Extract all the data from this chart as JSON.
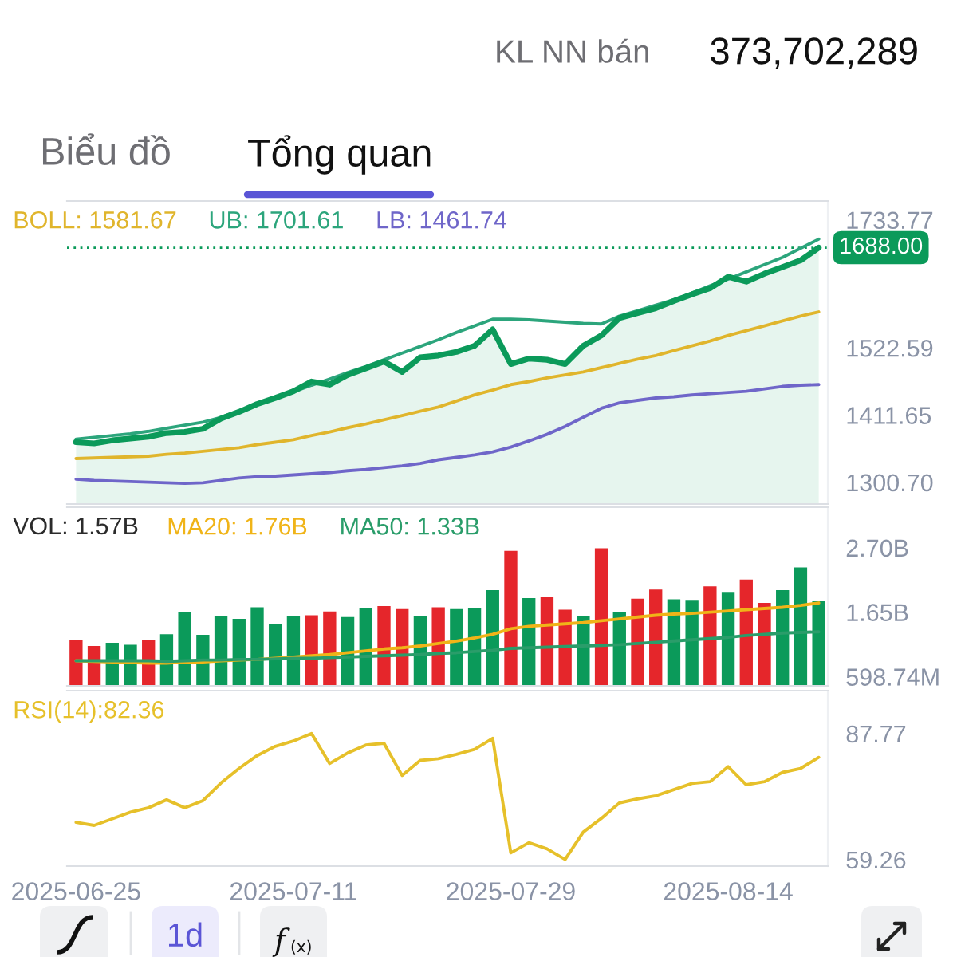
{
  "chart_data": [
    {
      "type": "other",
      "annotations": [
        "KL NN bán",
        "373,702,289",
        "Biểu đồ",
        "Tổng quan"
      ]
    },
    {
      "type": "line",
      "categories": [
        "2025-06-25",
        null,
        null,
        null,
        null,
        null,
        null,
        null,
        null,
        null,
        null,
        null,
        "2025-07-11",
        null,
        null,
        null,
        null,
        null,
        null,
        null,
        null,
        null,
        null,
        null,
        "2025-07-29",
        null,
        null,
        null,
        null,
        null,
        null,
        null,
        null,
        null,
        null,
        null,
        "2025-08-14",
        null,
        null,
        null,
        null,
        null
      ],
      "series": [
        {
          "type": "area",
          "color": "#0b9a5a",
          "values": [
            1367,
            1365,
            1370,
            1373,
            1376,
            1382,
            1384,
            1389,
            1406,
            1417,
            1430,
            1440,
            1451,
            1467,
            1462,
            1478,
            1489,
            1500,
            1483,
            1507,
            1510,
            1516,
            1526,
            1553,
            1496,
            1505,
            1503,
            1496,
            1526,
            1543,
            1572,
            1580,
            1588,
            1600,
            1611,
            1621,
            1640,
            1632,
            1645,
            1656,
            1667,
            1688
          ]
        },
        {
          "name": "BOLL: 1581.67",
          "color": "#e0b52c",
          "values": [
            1340,
            1341,
            1342,
            1343,
            1344,
            1347,
            1349,
            1352,
            1355,
            1358,
            1363,
            1367,
            1371,
            1378,
            1384,
            1391,
            1397,
            1404,
            1411,
            1418,
            1425,
            1435,
            1445,
            1453,
            1462,
            1467,
            1473,
            1478,
            1483,
            1490,
            1497,
            1504,
            1510,
            1518,
            1526,
            1534,
            1543,
            1551,
            1559,
            1567,
            1575,
            1582
          ]
        },
        {
          "name": "UB: 1701.61",
          "color": "#2ca57c",
          "values": [
            1372,
            1375,
            1378,
            1381,
            1385,
            1390,
            1395,
            1400,
            1408,
            1419,
            1429,
            1440,
            1450,
            1461,
            1471,
            1482,
            1492,
            1503,
            1514,
            1525,
            1536,
            1548,
            1559,
            1570,
            1570,
            1569,
            1567,
            1565,
            1563,
            1562,
            1575,
            1584,
            1593,
            1602,
            1613,
            1625,
            1636,
            1648,
            1660,
            1672,
            1687,
            1702
          ]
        },
        {
          "name": "LB: 1461.74",
          "color": "#6f66c9",
          "values": [
            1306,
            1304,
            1303,
            1302,
            1301,
            1300,
            1299,
            1300,
            1304,
            1308,
            1310,
            1311,
            1313,
            1315,
            1317,
            1320,
            1322,
            1325,
            1328,
            1332,
            1338,
            1342,
            1346,
            1351,
            1359,
            1369,
            1380,
            1393,
            1408,
            1423,
            1432,
            1436,
            1440,
            1442,
            1445,
            1447,
            1449,
            1451,
            1455,
            1459,
            1461,
            1462
          ]
        }
      ],
      "ylim": [
        1265,
        1765
      ],
      "yticks": [
        {
          "value": 1300.7,
          "label": "1300.70"
        },
        {
          "value": 1411.65,
          "label": "1411.65"
        },
        {
          "value": 1522.59,
          "label": "1522.59"
        },
        {
          "value": 1733.77,
          "label": "1733.77"
        }
      ],
      "ref_lines": [
        {
          "axis": "y",
          "value": 1688,
          "label": "1688.00",
          "color": "#0b9a5a",
          "line_style": "dotted"
        }
      ],
      "tick_labels": "y",
      "legend": "top left"
    },
    {
      "type": "bar",
      "categories": [
        "2025-06-25",
        null,
        null,
        null,
        null,
        null,
        null,
        null,
        null,
        null,
        null,
        null,
        "2025-07-11",
        null,
        null,
        null,
        null,
        null,
        null,
        null,
        null,
        null,
        null,
        null,
        "2025-07-29",
        null,
        null,
        null,
        null,
        null,
        null,
        null,
        null,
        null,
        null,
        null,
        "2025-08-14",
        null,
        null,
        null,
        null,
        null
      ],
      "annotations": [
        "VOL: 1.57B"
      ],
      "series": [
        {
          "type": "bar",
          "colors": [
            "#e5262b",
            "#e5262b",
            "#0b9a5a",
            "#0b9a5a",
            "#e5262b",
            "#0b9a5a",
            "#0b9a5a",
            "#0b9a5a",
            "#0b9a5a",
            "#0b9a5a",
            "#0b9a5a",
            "#0b9a5a",
            "#0b9a5a",
            "#e5262b",
            "#e5262b",
            "#0b9a5a",
            "#0b9a5a",
            "#e5262b",
            "#e5262b",
            "#0b9a5a",
            "#e5262b",
            "#0b9a5a",
            "#0b9a5a",
            "#0b9a5a",
            "#e5262b",
            "#0b9a5a",
            "#e5262b",
            "#e5262b",
            "#0b9a5a",
            "#e5262b",
            "#0b9a5a",
            "#e5262b",
            "#e5262b",
            "#0b9a5a",
            "#0b9a5a",
            "#e5262b",
            "#0b9a5a",
            "#e5262b",
            "#e5262b",
            "#0b9a5a",
            "#0b9a5a",
            "#0b9a5a"
          ],
          "values": [
            1190000000,
            1100000000,
            1150000000,
            1120000000,
            1190000000,
            1290000000,
            1650000000,
            1280000000,
            1580000000,
            1540000000,
            1730000000,
            1460000000,
            1580000000,
            1600000000,
            1660000000,
            1570000000,
            1710000000,
            1750000000,
            1700000000,
            1580000000,
            1730000000,
            1700000000,
            1720000000,
            2010000000,
            2650000000,
            1880000000,
            1900000000,
            1690000000,
            1580000000,
            2690000000,
            1650000000,
            1870000000,
            2020000000,
            1860000000,
            1850000000,
            2070000000,
            1980000000,
            2180000000,
            1800000000,
            2010000000,
            2380000000,
            1840000000
          ]
        },
        {
          "name": "MA20: 1.76B",
          "type": "line",
          "color": "#f0b418",
          "values": [
            860000000,
            850000000,
            840000000,
            830000000,
            820000000,
            820000000,
            840000000,
            840000000,
            860000000,
            870000000,
            880000000,
            900000000,
            920000000,
            940000000,
            960000000,
            990000000,
            1020000000,
            1050000000,
            1070000000,
            1100000000,
            1140000000,
            1180000000,
            1230000000,
            1290000000,
            1380000000,
            1420000000,
            1440000000,
            1460000000,
            1480000000,
            1510000000,
            1540000000,
            1570000000,
            1600000000,
            1620000000,
            1630000000,
            1650000000,
            1670000000,
            1690000000,
            1710000000,
            1730000000,
            1760000000,
            1800000000
          ]
        },
        {
          "name": "MA50: 1.33B",
          "type": "line",
          "color": "#2a9d6a",
          "values": [
            860000000,
            860000000,
            860000000,
            860000000,
            860000000,
            850000000,
            860000000,
            870000000,
            870000000,
            880000000,
            880000000,
            890000000,
            900000000,
            900000000,
            910000000,
            920000000,
            930000000,
            940000000,
            950000000,
            960000000,
            980000000,
            990000000,
            1010000000,
            1030000000,
            1060000000,
            1070000000,
            1080000000,
            1090000000,
            1100000000,
            1110000000,
            1120000000,
            1140000000,
            1160000000,
            1180000000,
            1200000000,
            1220000000,
            1240000000,
            1270000000,
            1290000000,
            1310000000,
            1320000000,
            1330000000
          ]
        }
      ],
      "ylim": [
        450000000,
        3360000000
      ],
      "yticks": [
        {
          "value": 598740000,
          "label": "598.74M"
        },
        {
          "value": 1650000000,
          "label": "1.65B"
        },
        {
          "value": 2700000000,
          "label": "2.70B"
        }
      ],
      "tick_labels": "y",
      "legend": "top left"
    },
    {
      "type": "line",
      "categories": [
        "2025-06-25",
        null,
        null,
        null,
        null,
        null,
        null,
        null,
        null,
        null,
        null,
        null,
        "2025-07-11",
        null,
        null,
        null,
        null,
        null,
        null,
        null,
        null,
        null,
        null,
        null,
        "2025-07-29",
        null,
        null,
        null,
        null,
        null,
        null,
        null,
        null,
        null,
        null,
        null,
        "2025-08-14",
        null,
        null,
        null,
        null,
        null
      ],
      "series": [
        {
          "name": "RSI(14):82.36",
          "color": "#e6c02a",
          "values": [
            67.7,
            67.0,
            68.5,
            70.0,
            71.0,
            72.8,
            71.0,
            72.6,
            76.6,
            79.9,
            82.8,
            84.9,
            86.1,
            87.8,
            81.0,
            83.4,
            85.2,
            85.6,
            78.3,
            81.7,
            82.1,
            83.1,
            84.2,
            86.7,
            60.8,
            63.1,
            61.7,
            59.3,
            65.5,
            68.6,
            72.1,
            73.0,
            73.7,
            75.1,
            76.5,
            76.9,
            80.3,
            76.2,
            76.9,
            79.0,
            79.9,
            82.4
          ]
        }
      ],
      "ylim": [
        57.8,
        97.5
      ],
      "yticks": [
        87.77,
        59.26
      ],
      "legend": "top left"
    },
    {
      "type": "other",
      "annotations": [
        "1d"
      ]
    }
  ]
}
